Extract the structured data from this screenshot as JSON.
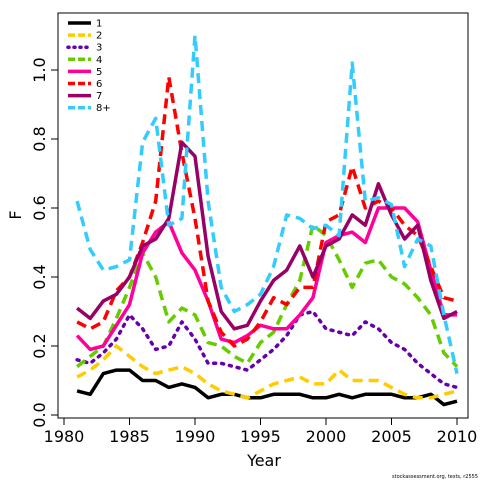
{
  "chart_data": {
    "type": "line",
    "xlabel": "Year",
    "ylabel": "F",
    "xlim": [
      1981,
      2010
    ],
    "ylim": [
      0,
      1.15
    ],
    "xticks": [
      "1980",
      "1985",
      "1990",
      "1995",
      "2000",
      "2005",
      "2010"
    ],
    "yticks": [
      "0.0",
      "0.2",
      "0.4",
      "0.6",
      "0.8",
      "1.0"
    ],
    "legend_position": "top-left",
    "grid": false,
    "credit": "stockassessment.org, tests, r2555",
    "x": [
      1981,
      1982,
      1983,
      1984,
      1985,
      1986,
      1987,
      1988,
      1989,
      1990,
      1991,
      1992,
      1993,
      1994,
      1995,
      1996,
      1997,
      1998,
      1999,
      2000,
      2001,
      2002,
      2003,
      2004,
      2005,
      2006,
      2007,
      2008,
      2009,
      2010
    ],
    "series": [
      {
        "name": "1",
        "color": "#000000",
        "dash": "solid",
        "values": [
          0.07,
          0.06,
          0.12,
          0.13,
          0.13,
          0.1,
          0.1,
          0.08,
          0.09,
          0.08,
          0.05,
          0.06,
          0.06,
          0.05,
          0.05,
          0.06,
          0.06,
          0.06,
          0.05,
          0.05,
          0.06,
          0.05,
          0.06,
          0.06,
          0.06,
          0.05,
          0.05,
          0.06,
          0.03,
          0.04
        ]
      },
      {
        "name": "2",
        "color": "#FFCC00",
        "dash": "dashed",
        "values": [
          0.11,
          0.13,
          0.16,
          0.2,
          0.17,
          0.14,
          0.12,
          0.13,
          0.14,
          0.12,
          0.09,
          0.07,
          0.06,
          0.05,
          0.07,
          0.09,
          0.1,
          0.11,
          0.09,
          0.09,
          0.13,
          0.1,
          0.1,
          0.1,
          0.08,
          0.06,
          0.05,
          0.05,
          0.06,
          0.07
        ]
      },
      {
        "name": "3",
        "color": "#6600AA",
        "dash": "dotted",
        "values": [
          0.16,
          0.15,
          0.18,
          0.22,
          0.29,
          0.25,
          0.19,
          0.2,
          0.27,
          0.22,
          0.15,
          0.15,
          0.14,
          0.13,
          0.16,
          0.19,
          0.23,
          0.29,
          0.3,
          0.25,
          0.24,
          0.23,
          0.27,
          0.25,
          0.21,
          0.19,
          0.15,
          0.12,
          0.09,
          0.08
        ]
      },
      {
        "name": "4",
        "color": "#66CC00",
        "dash": "dashed",
        "values": [
          0.14,
          0.17,
          0.2,
          0.28,
          0.37,
          0.47,
          0.4,
          0.27,
          0.31,
          0.29,
          0.21,
          0.2,
          0.17,
          0.15,
          0.21,
          0.24,
          0.32,
          0.39,
          0.55,
          0.52,
          0.45,
          0.37,
          0.44,
          0.45,
          0.4,
          0.38,
          0.34,
          0.29,
          0.18,
          0.14
        ]
      },
      {
        "name": "5",
        "color": "#FF0099",
        "dash": "solid",
        "values": [
          0.23,
          0.19,
          0.2,
          0.26,
          0.32,
          0.47,
          0.53,
          0.56,
          0.47,
          0.42,
          0.33,
          0.22,
          0.21,
          0.23,
          0.26,
          0.25,
          0.25,
          0.29,
          0.34,
          0.5,
          0.52,
          0.53,
          0.5,
          0.6,
          0.6,
          0.6,
          0.56,
          0.42,
          0.29,
          0.29
        ]
      },
      {
        "name": "6",
        "color": "#FF0000",
        "dash": "dashed",
        "values": [
          0.27,
          0.25,
          0.27,
          0.36,
          0.4,
          0.5,
          0.62,
          0.98,
          0.76,
          0.57,
          0.33,
          0.24,
          0.2,
          0.22,
          0.27,
          0.34,
          0.32,
          0.37,
          0.37,
          0.56,
          0.58,
          0.72,
          0.6,
          0.62,
          0.6,
          0.55,
          0.52,
          0.43,
          0.34,
          0.33
        ]
      },
      {
        "name": "7",
        "color": "#990066",
        "dash": "solid",
        "values": [
          0.31,
          0.28,
          0.33,
          0.35,
          0.4,
          0.49,
          0.51,
          0.57,
          0.79,
          0.75,
          0.46,
          0.3,
          0.25,
          0.26,
          0.33,
          0.39,
          0.42,
          0.49,
          0.4,
          0.49,
          0.51,
          0.58,
          0.55,
          0.67,
          0.58,
          0.51,
          0.55,
          0.39,
          0.28,
          0.3
        ]
      },
      {
        "name": "8+",
        "color": "#33CCFF",
        "dash": "dashed",
        "values": [
          0.62,
          0.48,
          0.42,
          0.43,
          0.45,
          0.79,
          0.86,
          0.55,
          0.57,
          1.1,
          0.62,
          0.37,
          0.3,
          0.32,
          0.35,
          0.43,
          0.58,
          0.57,
          0.54,
          0.55,
          0.52,
          1.02,
          0.62,
          0.63,
          0.61,
          0.43,
          0.51,
          0.49,
          0.29,
          0.12
        ]
      }
    ]
  }
}
